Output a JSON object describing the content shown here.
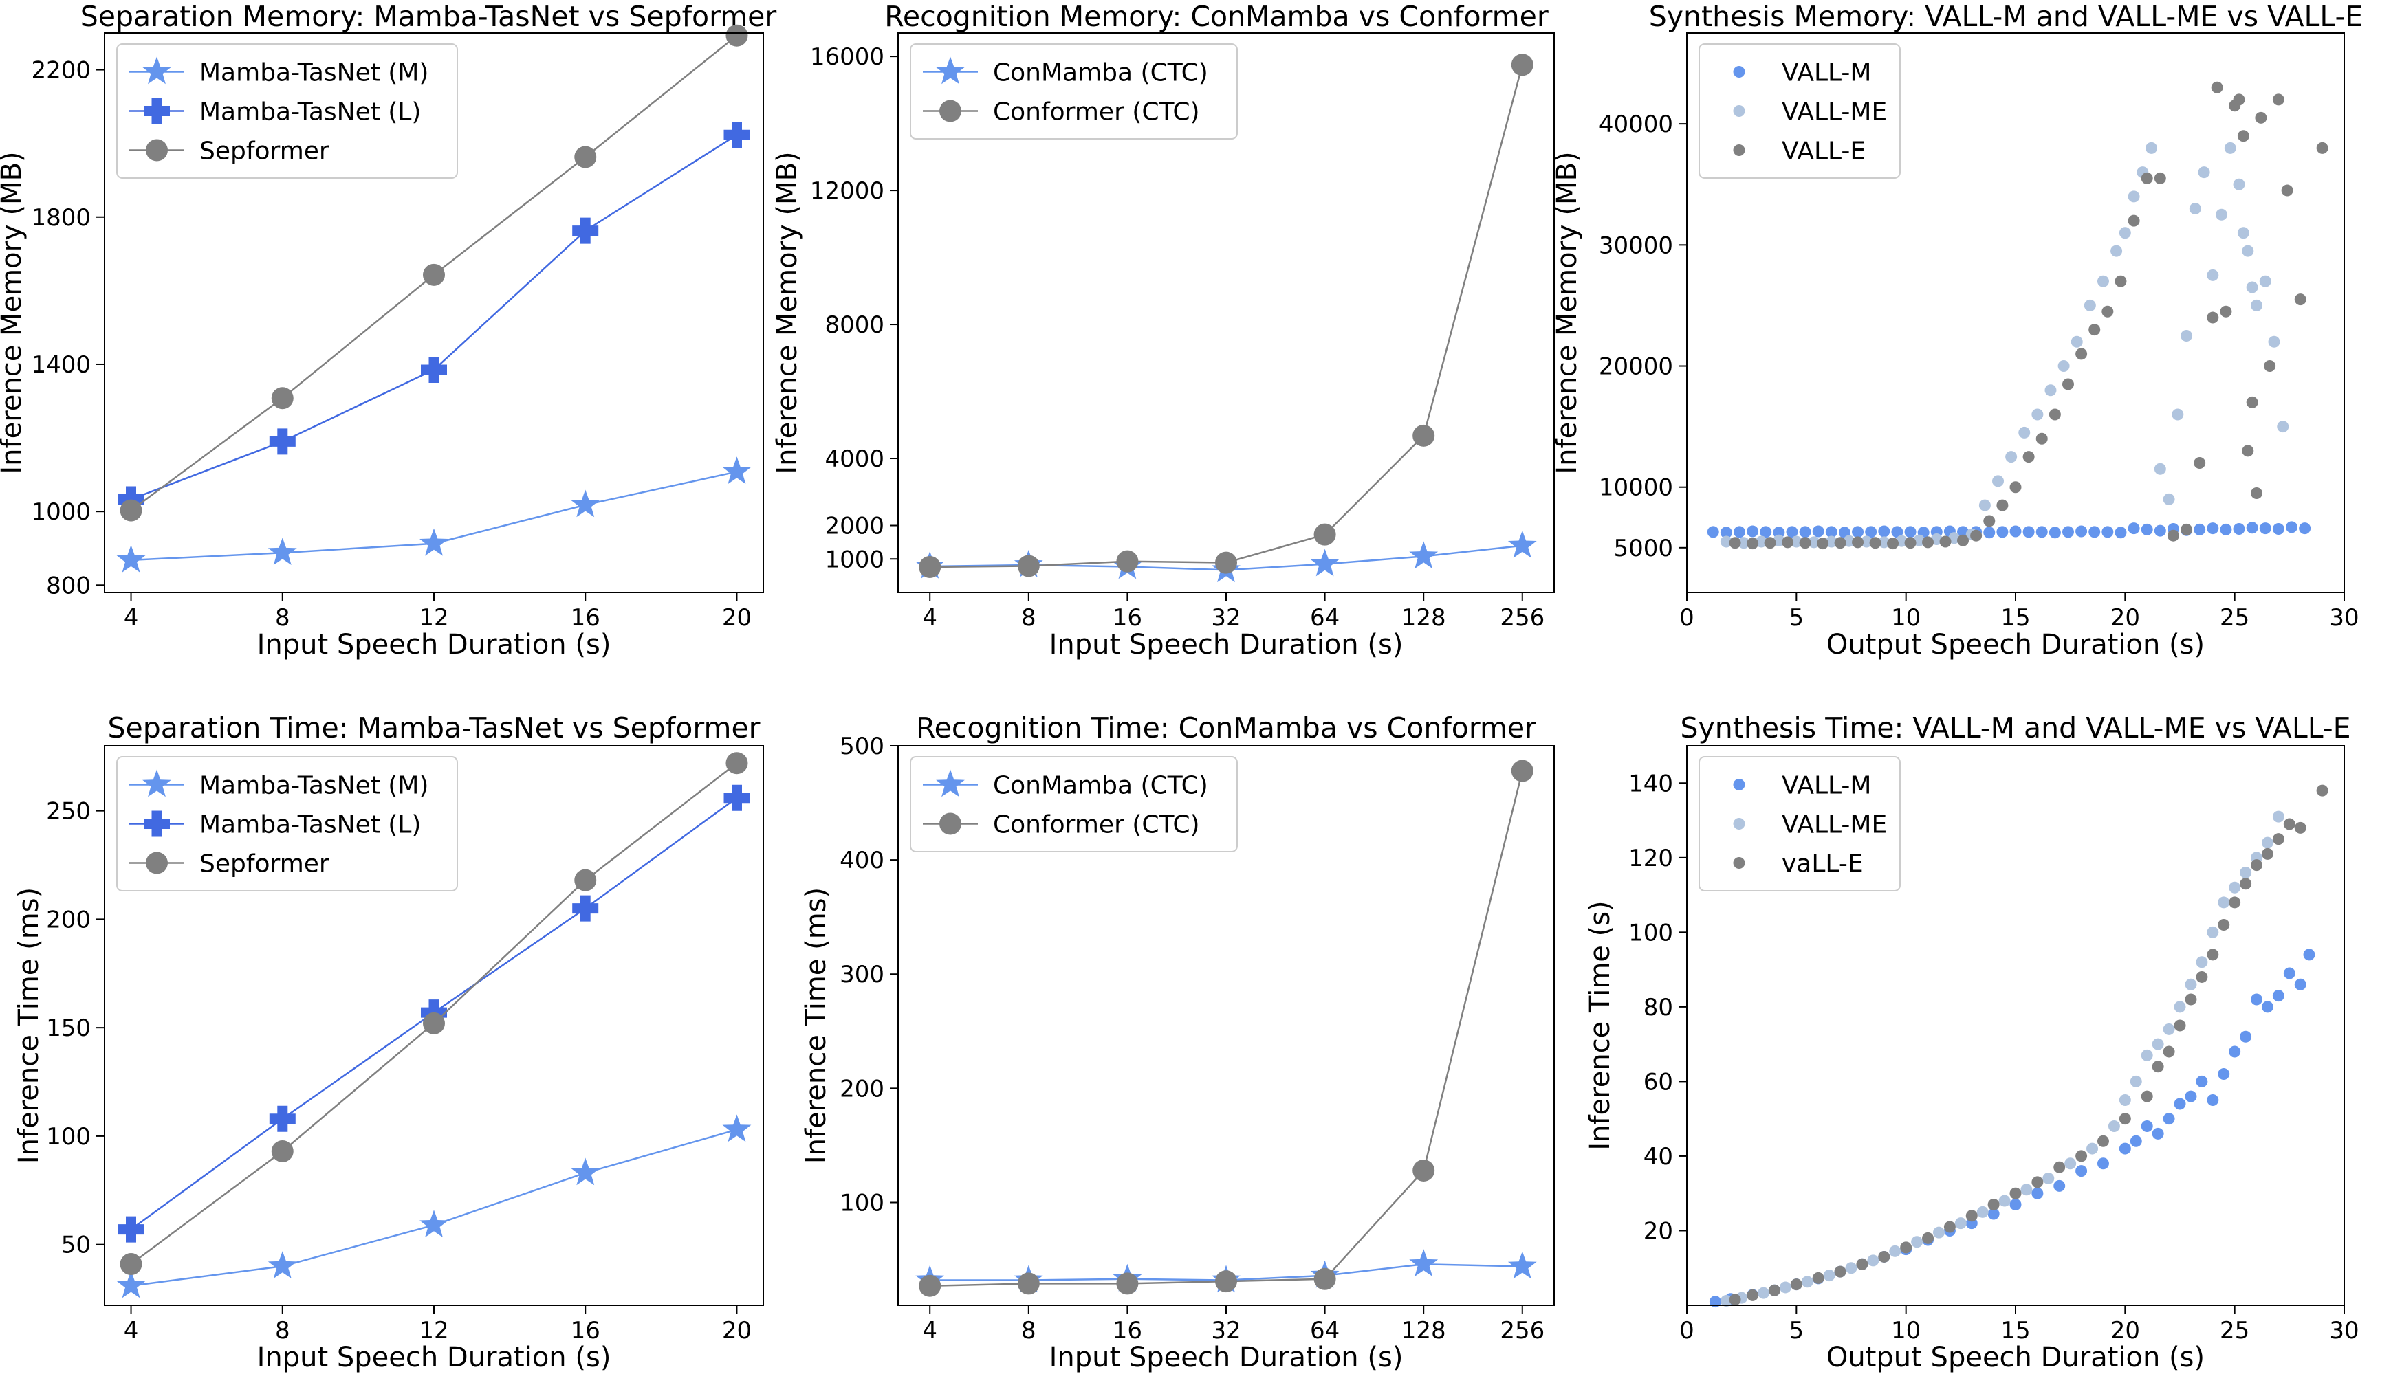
{
  "colors": {
    "mamba_m": "#6495ED",
    "mamba_l": "#4169E1",
    "baseline": "#808080",
    "vall_me": "#B0C4DE"
  },
  "chart_data": [
    {
      "type": "line",
      "title": "Separation Memory: Mamba-TasNet vs Sepformer",
      "xlabel": "Input Speech Duration (s)",
      "ylabel": "Inference Memory (MB)",
      "x_scale": "linear",
      "xlim": [
        3.3,
        20.7
      ],
      "ylim": [
        780,
        2300
      ],
      "xticks": [
        4,
        8,
        12,
        16,
        20
      ],
      "yticks": [
        800,
        1000,
        1400,
        1800,
        2200
      ],
      "legend_position": "top-left",
      "grid": false,
      "series": [
        {
          "name": "Mamba-TasNet (M)",
          "marker": "star",
          "color": "#6495ED",
          "x": [
            4,
            8,
            12,
            16,
            20
          ],
          "y": [
            868,
            888,
            913,
            1018,
            1108
          ]
        },
        {
          "name": "Mamba-TasNet (L)",
          "marker": "plus",
          "color": "#4169E1",
          "x": [
            4,
            8,
            12,
            16,
            20
          ],
          "y": [
            1033,
            1190,
            1385,
            1763,
            2023
          ]
        },
        {
          "name": "Sepformer",
          "marker": "circle",
          "color": "#808080",
          "x": [
            4,
            8,
            12,
            16,
            20
          ],
          "y": [
            1003,
            1308,
            1643,
            1963,
            2293
          ]
        }
      ]
    },
    {
      "type": "line",
      "title": "Recognition Memory: ConMamba vs Conformer",
      "xlabel": "Input Speech Duration (s)",
      "ylabel": "Inference Memory (MB)",
      "x_scale": "log2",
      "xlim": [
        3.2,
        320
      ],
      "ylim": [
        0,
        16700
      ],
      "xticks": [
        4,
        8,
        16,
        32,
        64,
        128,
        256
      ],
      "yticks": [
        1000,
        2000,
        4000,
        8000,
        12000,
        16000
      ],
      "legend_position": "top-left",
      "grid": false,
      "series": [
        {
          "name": "ConMamba (CTC)",
          "marker": "star",
          "color": "#6495ED",
          "x": [
            4,
            8,
            16,
            32,
            64,
            128,
            256
          ],
          "y": [
            780,
            820,
            770,
            670,
            850,
            1080,
            1400
          ]
        },
        {
          "name": "Conformer (CTC)",
          "marker": "circle",
          "color": "#808080",
          "x": [
            4,
            8,
            16,
            32,
            64,
            128,
            256
          ],
          "y": [
            760,
            790,
            930,
            890,
            1730,
            4680,
            15750
          ]
        }
      ]
    },
    {
      "type": "scatter",
      "title": "Synthesis Memory: VALL-M and VALL-ME vs VALL-E",
      "xlabel": "Output Speech Duration (s)",
      "ylabel": "Inference Memory (MB)",
      "xlim": [
        0,
        30
      ],
      "ylim": [
        1300,
        47500
      ],
      "xticks": [
        0,
        5,
        10,
        15,
        20,
        25,
        30
      ],
      "yticks": [
        5000,
        10000,
        20000,
        30000,
        40000
      ],
      "legend_position": "top-left",
      "grid": false,
      "series": [
        {
          "name": "VALL-M",
          "color": "#6495ED",
          "x": [
            1.2,
            1.8,
            2.4,
            3,
            3.6,
            4.2,
            4.8,
            5.4,
            6,
            6.6,
            7.2,
            7.8,
            8.4,
            9,
            9.6,
            10.2,
            10.8,
            11.4,
            12,
            12.6,
            13.2,
            13.8,
            14.4,
            15,
            15.6,
            16.2,
            16.8,
            17.4,
            18,
            18.6,
            19.2,
            19.8,
            20.4,
            21,
            21.6,
            22.2,
            22.8,
            23.4,
            24,
            24.6,
            25.2,
            25.8,
            26.4,
            27,
            27.6,
            28.2
          ],
          "y": [
            6300,
            6250,
            6300,
            6350,
            6300,
            6250,
            6300,
            6300,
            6350,
            6300,
            6250,
            6300,
            6300,
            6350,
            6300,
            6300,
            6250,
            6300,
            6350,
            6300,
            6300,
            6250,
            6300,
            6350,
            6300,
            6300,
            6250,
            6300,
            6350,
            6300,
            6300,
            6250,
            6600,
            6500,
            6400,
            6550,
            6450,
            6500,
            6600,
            6500,
            6550,
            6650,
            6600,
            6550,
            6700,
            6600
          ]
        },
        {
          "name": "VALL-ME",
          "color": "#B0C4DE",
          "x": [
            1.8,
            2.6,
            3.4,
            4.2,
            5,
            5.8,
            6.6,
            7.4,
            8.2,
            9,
            9.8,
            10.6,
            11.4,
            12.2,
            13,
            13.6,
            14.2,
            14.8,
            15.4,
            16,
            16.6,
            17.2,
            17.8,
            18.4,
            19,
            19.6,
            20,
            20.4,
            20.8,
            21.2,
            21.6,
            22,
            22.4,
            22.8,
            23.2,
            23.6,
            24,
            24.4,
            24.8,
            25.2,
            25.4,
            25.6,
            25.8,
            26,
            26.4,
            26.8,
            27.2
          ],
          "y": [
            5500,
            5400,
            5500,
            5600,
            5500,
            5450,
            5500,
            5550,
            5500,
            5450,
            5550,
            5600,
            5700,
            5800,
            6100,
            8500,
            10500,
            12500,
            14500,
            16000,
            18000,
            20000,
            22000,
            25000,
            27000,
            29500,
            31000,
            34000,
            36000,
            38000,
            11500,
            9000,
            16000,
            22500,
            33000,
            36000,
            27500,
            32500,
            38000,
            35000,
            31000,
            29500,
            26500,
            25000,
            27000,
            22000,
            15000
          ]
        },
        {
          "name": "VALL-E",
          "color": "#808080",
          "x": [
            2.2,
            3,
            3.8,
            4.6,
            5.4,
            6.2,
            7,
            7.8,
            8.6,
            9.4,
            10.2,
            11,
            11.8,
            12.6,
            13.2,
            13.8,
            14.4,
            15,
            15.6,
            16.2,
            16.8,
            17.4,
            18,
            18.6,
            19.2,
            19.8,
            20.4,
            21,
            21.6,
            22.2,
            22.8,
            23.4,
            24,
            24.2,
            24.6,
            25,
            25.2,
            25.4,
            25.6,
            25.8,
            26,
            26.2,
            26.6,
            27,
            27.4,
            28,
            29
          ],
          "y": [
            5400,
            5350,
            5400,
            5450,
            5400,
            5350,
            5400,
            5450,
            5400,
            5350,
            5400,
            5450,
            5500,
            5600,
            6000,
            7200,
            8500,
            10000,
            12500,
            14000,
            16000,
            18500,
            21000,
            23000,
            24500,
            27000,
            32000,
            35500,
            35500,
            6000,
            6500,
            12000,
            24000,
            43000,
            24500,
            41500,
            42000,
            39000,
            13000,
            17000,
            9500,
            40500,
            20000,
            42000,
            34500,
            25500,
            38000
          ]
        }
      ]
    },
    {
      "type": "line",
      "title": "Separation Time: Mamba-TasNet vs Sepformer",
      "xlabel": "Input Speech Duration (s)",
      "ylabel": "Inference Time (ms)",
      "x_scale": "linear",
      "xlim": [
        3.3,
        20.7
      ],
      "ylim": [
        22,
        280
      ],
      "xticks": [
        4,
        8,
        12,
        16,
        20
      ],
      "yticks": [
        50,
        100,
        150,
        200,
        250
      ],
      "legend_position": "top-left",
      "grid": false,
      "series": [
        {
          "name": "Mamba-TasNet (M)",
          "marker": "star",
          "color": "#6495ED",
          "x": [
            4,
            8,
            12,
            16,
            20
          ],
          "y": [
            31,
            40,
            59,
            83,
            103
          ]
        },
        {
          "name": "Mamba-TasNet (L)",
          "marker": "plus",
          "color": "#4169E1",
          "x": [
            4,
            8,
            12,
            16,
            20
          ],
          "y": [
            57,
            108,
            157,
            205,
            256
          ]
        },
        {
          "name": "Sepformer",
          "marker": "circle",
          "color": "#808080",
          "x": [
            4,
            8,
            12,
            16,
            20
          ],
          "y": [
            41,
            93,
            152,
            218,
            272
          ]
        }
      ]
    },
    {
      "type": "line",
      "title": "Recognition Time: ConMamba vs Conformer",
      "xlabel": "Input Speech Duration (s)",
      "ylabel": "Inference Time (ms)",
      "x_scale": "log2",
      "xlim": [
        3.2,
        320
      ],
      "ylim": [
        10,
        500
      ],
      "xticks": [
        4,
        8,
        16,
        32,
        64,
        128,
        256
      ],
      "yticks": [
        100,
        200,
        300,
        400,
        500
      ],
      "legend_position": "top-left",
      "grid": false,
      "series": [
        {
          "name": "ConMamba (CTC)",
          "marker": "star",
          "color": "#6495ED",
          "x": [
            4,
            8,
            16,
            32,
            64,
            128,
            256
          ],
          "y": [
            32,
            32,
            33,
            32,
            36,
            46,
            44
          ]
        },
        {
          "name": "Conformer (CTC)",
          "marker": "circle",
          "color": "#808080",
          "x": [
            4,
            8,
            16,
            32,
            64,
            128,
            256
          ],
          "y": [
            27,
            29,
            29,
            31,
            33,
            128,
            478
          ]
        }
      ]
    },
    {
      "type": "scatter",
      "title": "Synthesis Time: VALL-M and VALL-ME vs VALL-E",
      "xlabel": "Output Speech Duration (s)",
      "ylabel": "Inference Time (s)",
      "xlim": [
        0,
        30
      ],
      "ylim": [
        0,
        150
      ],
      "xticks": [
        0,
        5,
        10,
        15,
        20,
        25,
        30
      ],
      "yticks": [
        20,
        40,
        60,
        80,
        100,
        120,
        140
      ],
      "legend_position": "top-left",
      "grid": false,
      "series": [
        {
          "name": "VALL-M",
          "color": "#6495ED",
          "x": [
            1.3,
            2,
            3,
            4,
            5,
            6,
            7,
            8,
            9,
            10,
            11,
            12,
            13,
            14,
            15,
            16,
            17,
            18,
            19,
            20,
            20.5,
            21,
            21.5,
            22,
            22.5,
            23,
            23.5,
            24,
            24.5,
            25,
            25.5,
            26,
            26.5,
            27,
            27.5,
            28,
            28.4
          ],
          "y": [
            1,
            1.7,
            2.8,
            4,
            5.6,
            7.2,
            9,
            11,
            13,
            15,
            17.5,
            20,
            22,
            24.5,
            27,
            30,
            32,
            36,
            38,
            42,
            44,
            48,
            46,
            50,
            54,
            56,
            60,
            55,
            62,
            68,
            72,
            82,
            80,
            83,
            89,
            86,
            94
          ]
        },
        {
          "name": "VALL-ME",
          "color": "#B0C4DE",
          "x": [
            1.8,
            2.5,
            3.5,
            4.5,
            5.5,
            6.5,
            7.5,
            8.5,
            9.5,
            10.5,
            11.5,
            12.5,
            13.5,
            14.5,
            15.5,
            16.5,
            17.5,
            18.5,
            19.5,
            20,
            20.5,
            21,
            21.5,
            22,
            22.5,
            23,
            23.5,
            24,
            24.5,
            25,
            25.5,
            26,
            26.5,
            27
          ],
          "y": [
            1.2,
            2,
            3.3,
            4.8,
            6.3,
            8,
            10,
            12,
            14.5,
            17,
            19.5,
            22,
            25,
            28,
            31,
            34,
            38,
            42,
            48,
            55,
            60,
            67,
            70,
            74,
            80,
            86,
            92,
            100,
            108,
            112,
            116,
            120,
            124,
            131
          ]
        },
        {
          "name": "vaLL-E",
          "color": "#808080",
          "x": [
            2.2,
            3,
            4,
            5,
            6,
            7,
            8,
            9,
            10,
            11,
            12,
            13,
            14,
            15,
            16,
            17,
            18,
            19,
            20,
            21,
            21.5,
            22,
            22.5,
            23,
            23.5,
            24,
            24.5,
            25,
            25.5,
            26,
            26.5,
            27,
            27.5,
            28,
            29
          ],
          "y": [
            1.5,
            2.7,
            4,
            5.6,
            7.3,
            9,
            11,
            13,
            15.5,
            18,
            21,
            24,
            27,
            30,
            33,
            37,
            40,
            44,
            50,
            56,
            64,
            68,
            75,
            82,
            88,
            94,
            102,
            108,
            113,
            118,
            121,
            125,
            129,
            128,
            138
          ]
        }
      ]
    }
  ]
}
